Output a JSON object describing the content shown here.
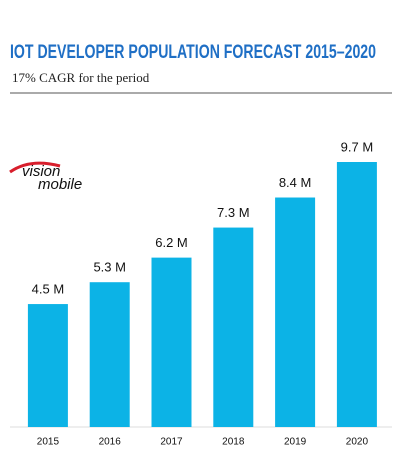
{
  "chart_data": {
    "type": "bar",
    "title": "IOT DEVELOPER POPULATION FORECAST 2015–2020",
    "subtitle": "17% CAGR for the period",
    "logo": {
      "line1": "vision",
      "line2": "mobile"
    },
    "categories": [
      "2015",
      "2016",
      "2017",
      "2018",
      "2019",
      "2020"
    ],
    "values": [
      4.5,
      5.3,
      6.2,
      7.3,
      8.4,
      9.7
    ],
    "value_labels": [
      "4.5 M",
      "5.3 M",
      "6.2 M",
      "7.3 M",
      "8.4 M",
      "9.7 M"
    ],
    "color": "#0cb3e6"
  }
}
